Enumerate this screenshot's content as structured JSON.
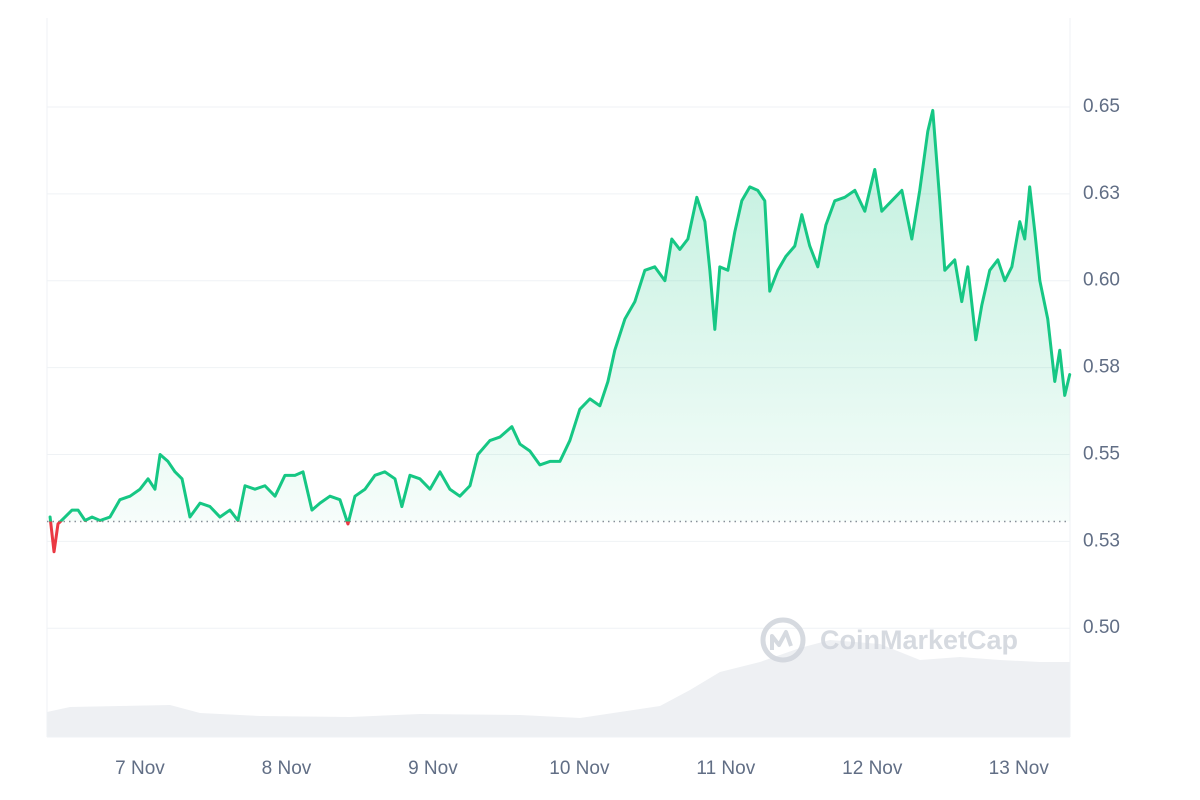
{
  "chart_data": {
    "type": "line",
    "color": "#16c784",
    "below_color": "#ea3943",
    "baseline": 0.5307,
    "watermark": "CoinMarketCap",
    "grid": true,
    "y_axis_side": "right",
    "xlim": [
      6.365,
      13.35
    ],
    "xticks": [
      {
        "value": 7,
        "label": "7 Nov"
      },
      {
        "value": 8,
        "label": "8 Nov"
      },
      {
        "value": 9,
        "label": "9 Nov"
      },
      {
        "value": 10,
        "label": "10 Nov"
      },
      {
        "value": 11,
        "label": "11 Nov"
      },
      {
        "value": 12,
        "label": "12 Nov"
      },
      {
        "value": 13,
        "label": "13 Nov"
      }
    ],
    "ylim": [
      0.4687,
      0.6756
    ],
    "yticks": [
      {
        "value": 0.5,
        "label": "0.50"
      },
      {
        "value": 0.525,
        "label": "0.53"
      },
      0.55,
      {
        "value": 0.575,
        "label": "0.58"
      },
      {
        "value": 0.6,
        "label": "0.60"
      },
      {
        "value": 0.625,
        "label": "0.63"
      },
      0.65
    ],
    "x": [
      6.386,
      6.413,
      6.44,
      6.488,
      6.536,
      6.577,
      6.625,
      6.672,
      6.727,
      6.795,
      6.863,
      6.932,
      7,
      7.055,
      7.102,
      7.137,
      7.191,
      7.239,
      7.287,
      7.341,
      7.41,
      7.478,
      7.546,
      7.614,
      7.669,
      7.717,
      7.785,
      7.853,
      7.922,
      7.99,
      8.058,
      8.113,
      8.174,
      8.229,
      8.297,
      8.365,
      8.42,
      8.468,
      8.536,
      8.604,
      8.672,
      8.741,
      8.788,
      8.843,
      8.911,
      8.98,
      9.048,
      9.116,
      9.184,
      9.253,
      9.307,
      9.389,
      9.457,
      9.539,
      9.594,
      9.662,
      9.73,
      9.799,
      9.867,
      9.935,
      10.003,
      10.072,
      10.14,
      10.195,
      10.242,
      10.311,
      10.379,
      10.447,
      10.515,
      10.584,
      10.631,
      10.686,
      10.741,
      10.802,
      10.857,
      10.891,
      10.925,
      10.959,
      11.014,
      11.061,
      11.109,
      11.164,
      11.218,
      11.266,
      11.3,
      11.355,
      11.41,
      11.471,
      11.519,
      11.573,
      11.628,
      11.683,
      11.744,
      11.812,
      11.881,
      11.949,
      12.017,
      12.065,
      12.133,
      12.202,
      12.27,
      12.324,
      12.379,
      12.413,
      12.461,
      12.495,
      12.563,
      12.611,
      12.652,
      12.707,
      12.748,
      12.802,
      12.857,
      12.905,
      12.953,
      13.007,
      13.041,
      13.075,
      13.11,
      13.144,
      13.198,
      13.246,
      13.28,
      13.314,
      13.348
    ],
    "values": [
      0.532,
      0.522,
      0.53,
      0.532,
      0.534,
      0.534,
      0.531,
      0.532,
      0.531,
      0.532,
      0.537,
      0.538,
      0.54,
      0.543,
      0.54,
      0.55,
      0.548,
      0.545,
      0.543,
      0.532,
      0.536,
      0.535,
      0.532,
      0.534,
      0.531,
      0.541,
      0.54,
      0.541,
      0.538,
      0.544,
      0.544,
      0.545,
      0.534,
      0.536,
      0.538,
      0.537,
      0.53,
      0.538,
      0.54,
      0.544,
      0.545,
      0.543,
      0.535,
      0.544,
      0.543,
      0.54,
      0.545,
      0.54,
      0.538,
      0.541,
      0.55,
      0.554,
      0.555,
      0.558,
      0.553,
      0.551,
      0.547,
      0.548,
      0.548,
      0.554,
      0.563,
      0.566,
      0.564,
      0.571,
      0.58,
      0.589,
      0.594,
      0.603,
      0.604,
      0.6,
      0.612,
      0.609,
      0.612,
      0.624,
      0.617,
      0.603,
      0.586,
      0.604,
      0.603,
      0.614,
      0.623,
      0.627,
      0.626,
      0.623,
      0.597,
      0.603,
      0.607,
      0.61,
      0.619,
      0.61,
      0.604,
      0.616,
      0.623,
      0.624,
      0.626,
      0.62,
      0.632,
      0.62,
      0.623,
      0.626,
      0.612,
      0.626,
      0.643,
      0.649,
      0.623,
      0.603,
      0.606,
      0.594,
      0.604,
      0.583,
      0.593,
      0.603,
      0.606,
      0.6,
      0.604,
      0.617,
      0.612,
      0.627,
      0.614,
      0.6,
      0.589,
      0.571,
      0.58,
      0.567,
      0.573
    ]
  }
}
